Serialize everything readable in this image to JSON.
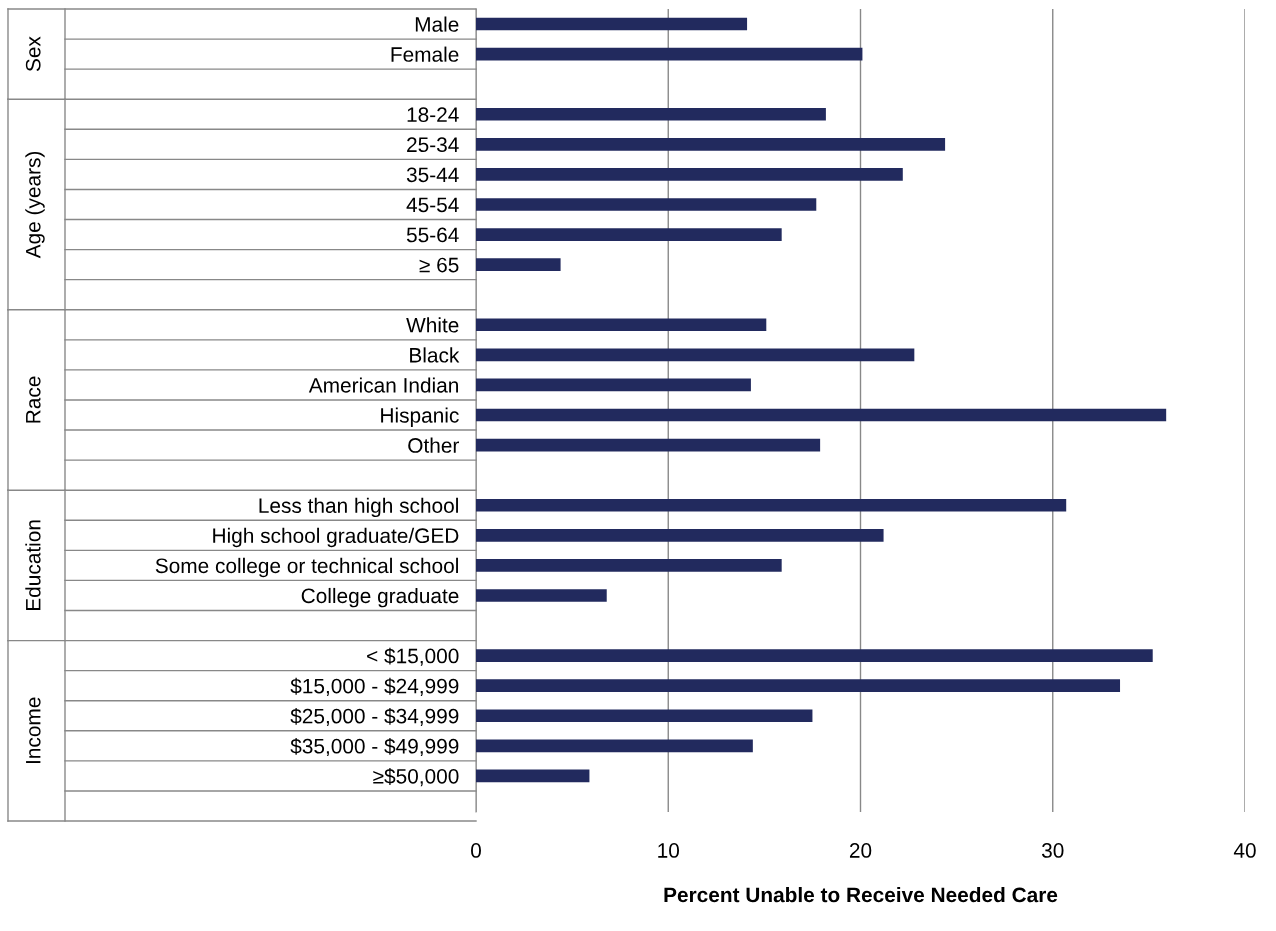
{
  "chart_data": {
    "type": "bar",
    "orientation": "horizontal",
    "xlabel": "Percent Unable to Receive Needed Care",
    "categories": [
      "Male",
      "Female",
      null,
      "18-24",
      "25-34",
      "35-44",
      "45-54",
      "55-64",
      "≥ 65",
      null,
      "White",
      "Black",
      "American Indian",
      "Hispanic",
      "Other",
      null,
      "Less than high school",
      "High school graduate/GED",
      "Some college or technical school",
      "College graduate",
      null,
      "< $15,000",
      "$15,000 - $24,999",
      "$25,000 - $34,999",
      "$35,000 - $49,999",
      "≥$50,000"
    ],
    "values": [
      14.1,
      20.1,
      null,
      18.2,
      24.4,
      22.2,
      17.7,
      15.9,
      4.4,
      null,
      15.1,
      22.8,
      14.3,
      35.9,
      17.9,
      null,
      30.7,
      21.2,
      15.9,
      6.8,
      null,
      35.2,
      33.5,
      17.5,
      14.4,
      5.9
    ],
    "color": "#222a5e",
    "annotations": [
      "Sex",
      "Age (years)",
      "Race",
      "Education",
      "Income"
    ],
    "xlim": [
      0,
      40
    ],
    "xticks": [
      0,
      10,
      20,
      30,
      40
    ],
    "grid": "x"
  }
}
